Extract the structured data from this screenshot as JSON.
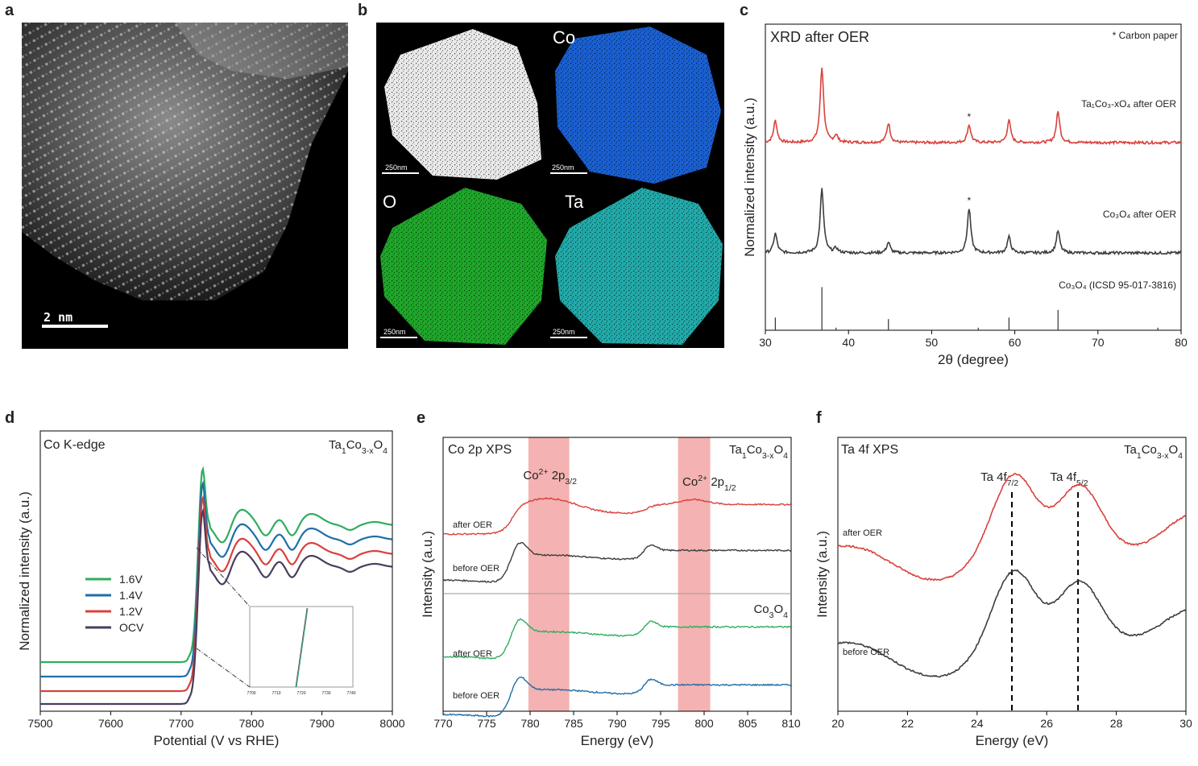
{
  "panels": {
    "a": {
      "letter": "a",
      "scale_label": "2 nm"
    },
    "b": {
      "letter": "b",
      "labels": [
        "Co",
        "O",
        "Ta"
      ],
      "scale_label": "250nm"
    },
    "c": {
      "letter": "c"
    },
    "d": {
      "letter": "d"
    },
    "e": {
      "letter": "e"
    },
    "f": {
      "letter": "f"
    }
  },
  "colors": {
    "red": "#d9413c",
    "dark": "#3d3d3d",
    "green": "#2fad5f",
    "blue": "#1e6ea8",
    "purple": "#4a3d5c",
    "band": "#f3a5a5",
    "co_map": "#1a5fd0",
    "o_map": "#1fa52a",
    "ta_map": "#1fb0b0"
  },
  "chart_data": [
    {
      "id": "c",
      "type": "line",
      "title": "XRD after OER",
      "annotation": "* Carbon paper",
      "xlabel": "2θ (degree)",
      "ylabel": "Normalized intensity (a.u.)",
      "xlim": [
        30,
        80
      ],
      "xticks": [
        30,
        40,
        50,
        60,
        70,
        80
      ],
      "series": [
        {
          "name": "Ta₁Co₃-xO₄ after OER",
          "color": "#d9413c",
          "offset": 2.0,
          "peaks": [
            [
              31.2,
              0.25
            ],
            [
              36.8,
              0.85
            ],
            [
              38.5,
              0.08
            ],
            [
              44.8,
              0.22
            ],
            [
              54.5,
              0.2
            ],
            [
              59.3,
              0.25
            ],
            [
              65.2,
              0.35
            ]
          ]
        },
        {
          "name": "Co₃O₄ after OER",
          "color": "#3d3d3d",
          "offset": 1.0,
          "peaks": [
            [
              31.2,
              0.22
            ],
            [
              36.8,
              0.72
            ],
            [
              38.5,
              0.05
            ],
            [
              44.8,
              0.12
            ],
            [
              54.5,
              0.5
            ],
            [
              59.3,
              0.18
            ],
            [
              65.2,
              0.25
            ]
          ]
        }
      ],
      "star_positions": [
        54.5,
        54.5
      ],
      "reference": {
        "name": "Co₃O₄ (ICSD 95-017-3816)",
        "sticks": [
          [
            31.2,
            0.25
          ],
          [
            36.8,
            0.85
          ],
          [
            38.5,
            0.05
          ],
          [
            44.8,
            0.22
          ],
          [
            55.6,
            0.05
          ],
          [
            59.3,
            0.25
          ],
          [
            65.2,
            0.4
          ],
          [
            77.2,
            0.05
          ]
        ]
      }
    },
    {
      "id": "d",
      "type": "line",
      "title": "Co K-edge",
      "sample": "Ta1Co3-xO4",
      "xlabel": "Potential (V vs RHE)",
      "ylabel": "Normalized intensity (a.u.)",
      "xlim": [
        7500,
        8000
      ],
      "xticks": [
        7500,
        7600,
        7700,
        7800,
        7900,
        8000
      ],
      "series": [
        {
          "name": "1.6V",
          "color": "#2fad5f"
        },
        {
          "name": "1.4V",
          "color": "#1e6ea8"
        },
        {
          "name": "1.2V",
          "color": "#d9413c"
        },
        {
          "name": "OCV",
          "color": "#4a3d5c"
        }
      ],
      "inset_xticks": [
        "7700",
        "7710",
        "7720",
        "7730",
        "7740"
      ]
    },
    {
      "id": "e",
      "type": "line",
      "title": "Co 2p XPS",
      "top_sample": "Ta1Co3-xO4",
      "bottom_sample": "Co3O4",
      "band_labels": [
        "Co2+ 2p3/2",
        "Co2+ 2p1/2"
      ],
      "xlabel": "Energy (eV)",
      "ylabel": "Intensity (a.u.)",
      "xlim": [
        770,
        810
      ],
      "xticks": [
        770,
        775,
        780,
        785,
        790,
        795,
        800,
        805,
        810
      ],
      "bands": [
        [
          779.8,
          784.5
        ],
        [
          797.0,
          800.7
        ]
      ],
      "series": [
        {
          "name": "after OER",
          "group": "top",
          "color": "#d9413c"
        },
        {
          "name": "before OER",
          "group": "top",
          "color": "#3d3d3d"
        },
        {
          "name": "after OER",
          "group": "bottom",
          "color": "#2fad5f"
        },
        {
          "name": "before OER",
          "group": "bottom",
          "color": "#1e6ea8"
        }
      ]
    },
    {
      "id": "f",
      "type": "line",
      "title": "Ta 4f XPS",
      "sample": "Ta1Co3-xO4",
      "peak_labels": [
        "Ta 4f7/2",
        "Ta 4f5/2"
      ],
      "peak_positions": [
        25.0,
        26.9
      ],
      "xlabel": "Energy (eV)",
      "ylabel": "Intensity (a.u.)",
      "xlim": [
        20,
        30
      ],
      "xticks": [
        20,
        22,
        24,
        26,
        28,
        30
      ],
      "series": [
        {
          "name": "after OER",
          "color": "#d9413c"
        },
        {
          "name": "before OER",
          "color": "#3d3d3d"
        }
      ]
    }
  ]
}
